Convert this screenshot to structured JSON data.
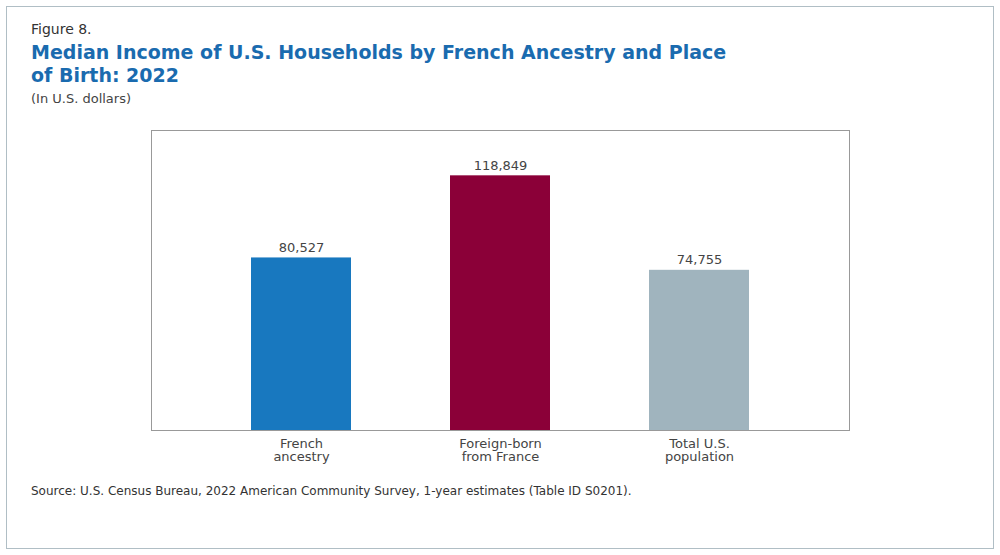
{
  "chart_data": {
    "type": "bar",
    "figure_label": "Figure 8.",
    "title": "Median Income of U.S. Households by French Ancestry and Place\nof Birth: 2022",
    "subtitle": "(In U.S. dollars)",
    "source": "Source: U.S. Census Bureau, 2022 American Community Survey, 1-year estimates (Table ID S0201).",
    "categories": [
      "French\nancestry",
      "Foreign-born\nfrom France",
      "Total U.S.\npopulation"
    ],
    "values": [
      80527,
      118849,
      74755
    ],
    "value_labels": [
      "80,527",
      "118,849",
      "74,755"
    ],
    "colors": [
      "#1878bf",
      "#8b0038",
      "#a0b4be"
    ],
    "ylim": [
      0,
      140000
    ],
    "yticks": [],
    "grid": false,
    "data_labels": true,
    "tick_labels": "x"
  }
}
